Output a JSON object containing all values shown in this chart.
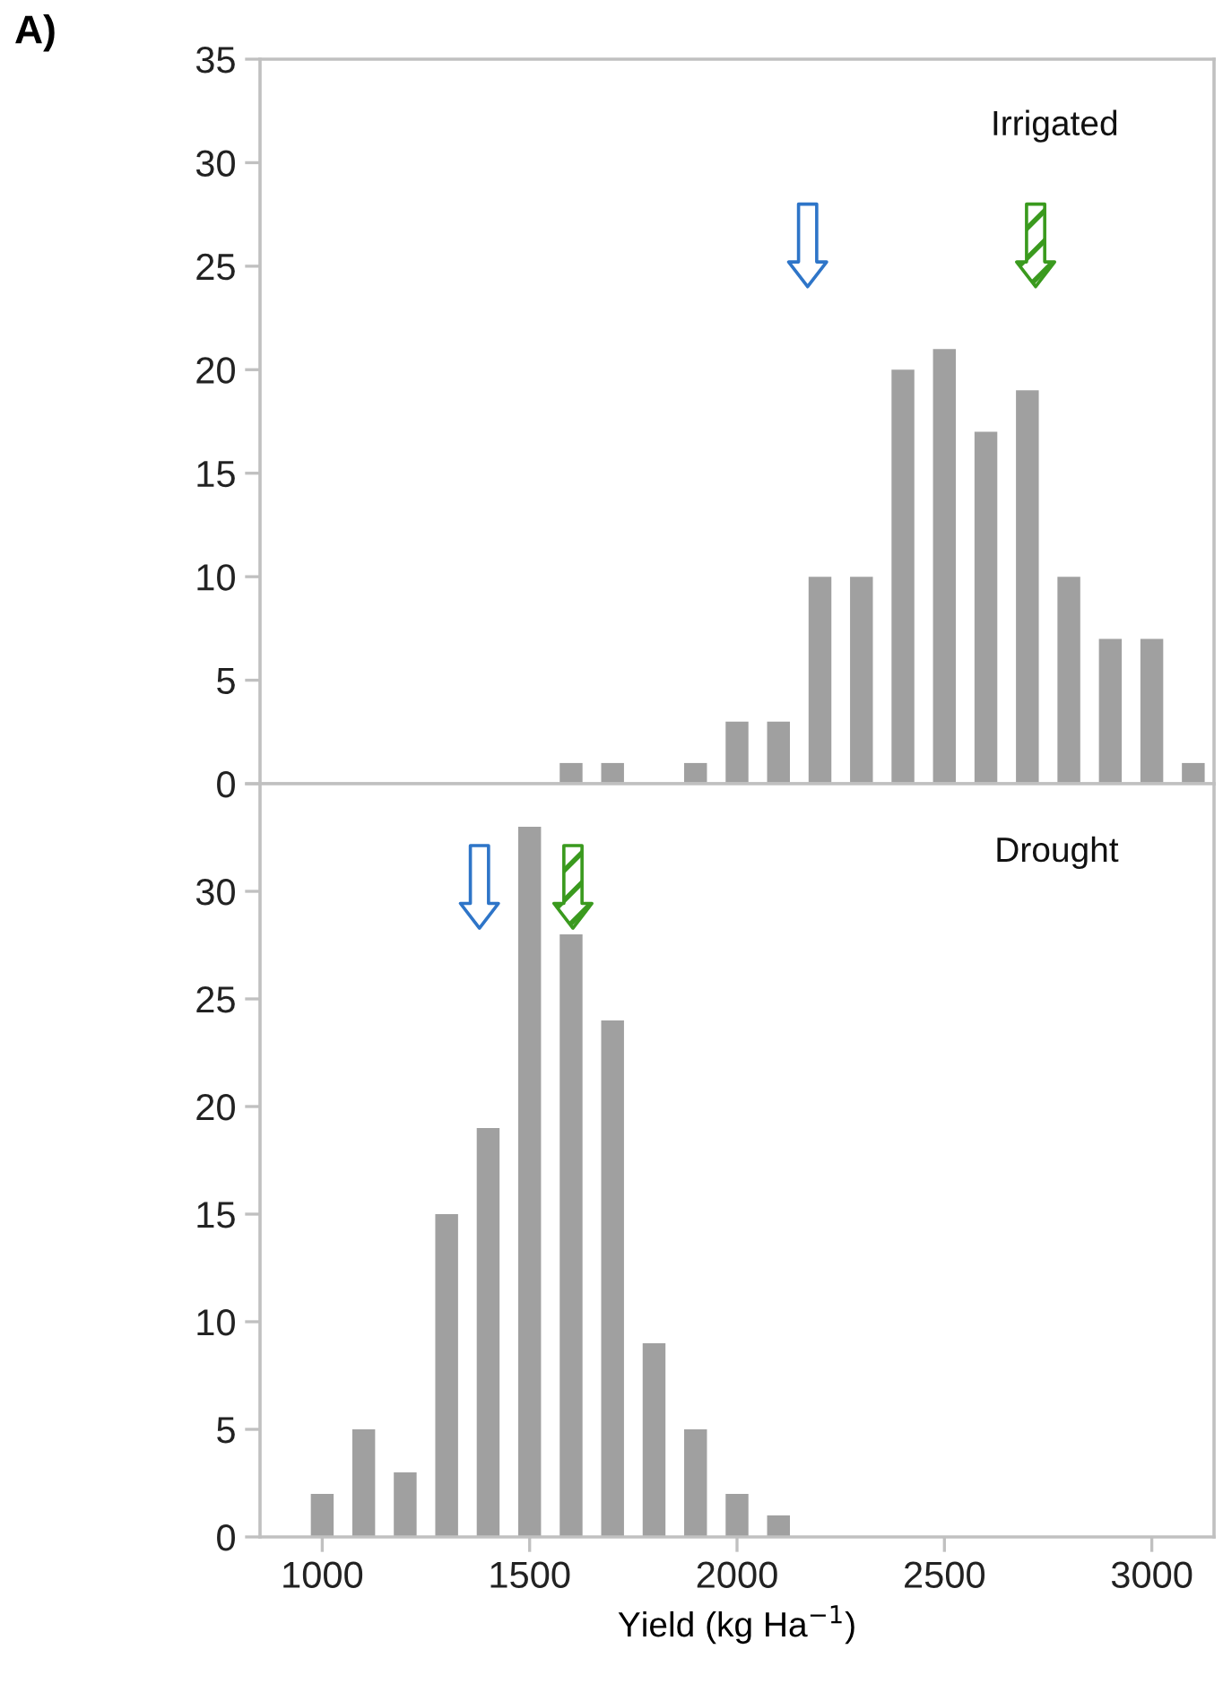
{
  "chart_data": [
    {
      "type": "bar",
      "title": "Irrigated",
      "annotations": [
        "A)"
      ],
      "x": [
        1600,
        1700,
        1800,
        1900,
        2000,
        2100,
        2200,
        2300,
        2400,
        2500,
        2600,
        2700,
        2800,
        2900,
        3000,
        3100
      ],
      "series": [
        {
          "color": "#a0a0a0",
          "values": [
            1,
            1,
            0,
            1,
            3,
            3,
            10,
            10,
            20,
            21,
            17,
            19,
            10,
            7,
            7,
            1
          ]
        }
      ],
      "xlim": [
        850,
        3150
      ],
      "ylim": [
        0,
        35
      ],
      "yticks": [
        0,
        5,
        10,
        15,
        20,
        25,
        30,
        35
      ],
      "tick_labels": "y",
      "grid": false,
      "legend": false
    },
    {
      "type": "bar",
      "title": "Drought",
      "xlabel": "Yield (kg Ha$^{−1}$)",
      "x": [
        1000,
        1100,
        1200,
        1300,
        1400,
        1500,
        1600,
        1700,
        1800,
        1900,
        2000,
        2100
      ],
      "series": [
        {
          "color": "#a0a0a0",
          "values": [
            2,
            5,
            3,
            15,
            19,
            33,
            28,
            24,
            9,
            5,
            2,
            1
          ]
        }
      ],
      "xlim": [
        850,
        3150
      ],
      "xticks": [
        1000,
        1500,
        2000,
        2500,
        3000
      ],
      "ylim": [
        0,
        35
      ],
      "yticks": [
        0,
        5,
        10,
        15,
        20,
        25,
        30,
        {
          "value": 35,
          "label": null
        }
      ],
      "grid": false,
      "legend": false
    }
  ]
}
